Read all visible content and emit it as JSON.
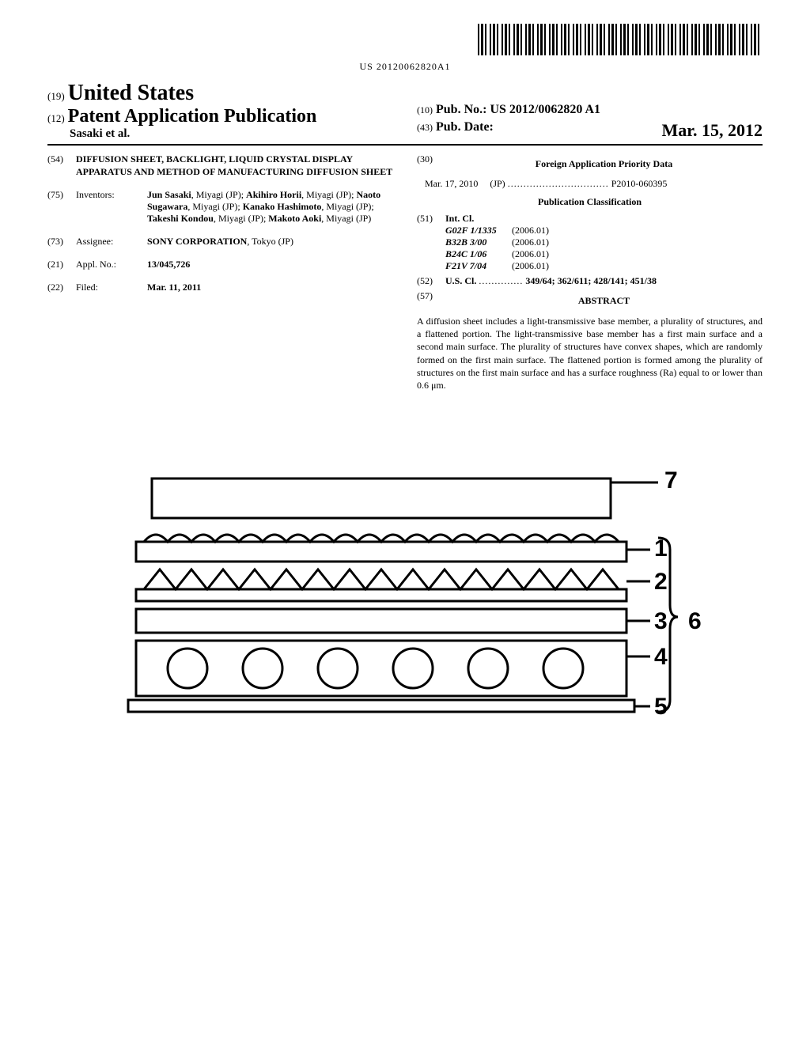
{
  "barcode": {
    "number": "US 20120062820A1"
  },
  "header": {
    "country_prefix": "(19)",
    "country": "United States",
    "doc_type_prefix": "(12)",
    "doc_type": "Patent Application Publication",
    "authors": "Sasaki et al.",
    "pub_no_prefix": "(10)",
    "pub_no_label": "Pub. No.:",
    "pub_no": "US 2012/0062820 A1",
    "pub_date_prefix": "(43)",
    "pub_date_label": "Pub. Date:",
    "pub_date": "Mar. 15, 2012"
  },
  "left": {
    "title_code": "(54)",
    "title": "DIFFUSION SHEET, BACKLIGHT, LIQUID CRYSTAL DISPLAY APPARATUS AND METHOD OF MANUFACTURING DIFFUSION SHEET",
    "inventors_code": "(75)",
    "inventors_label": "Inventors:",
    "inventors": [
      {
        "name": "Jun Sasaki",
        "loc": ", Miyagi (JP); "
      },
      {
        "name": "Akihiro Horii",
        "loc": ", Miyagi (JP); "
      },
      {
        "name": "Naoto Sugawara",
        "loc": ", Miyagi (JP); "
      },
      {
        "name": "Kanako Hashimoto",
        "loc": ", Miyagi (JP); "
      },
      {
        "name": "Takeshi Kondou",
        "loc": ", Miyagi (JP); "
      },
      {
        "name": "Makoto Aoki",
        "loc": ", Miyagi (JP)"
      }
    ],
    "assignee_code": "(73)",
    "assignee_label": "Assignee:",
    "assignee_name": "SONY CORPORATION",
    "assignee_loc": ", Tokyo (JP)",
    "appl_code": "(21)",
    "appl_label": "Appl. No.:",
    "appl_no": "13/045,726",
    "filed_code": "(22)",
    "filed_label": "Filed:",
    "filed_date": "Mar. 11, 2011"
  },
  "right": {
    "foreign_code": "(30)",
    "foreign_header": "Foreign Application Priority Data",
    "foreign_date": "Mar. 17, 2010",
    "foreign_country": "(JP)",
    "foreign_dots": "................................",
    "foreign_no": "P2010-060395",
    "pubclass_header": "Publication Classification",
    "intcl_code": "(51)",
    "intcl_label": "Int. Cl.",
    "intcl": [
      {
        "code": "G02F 1/1335",
        "year": "(2006.01)"
      },
      {
        "code": "B32B 3/00",
        "year": "(2006.01)"
      },
      {
        "code": "B24C 1/06",
        "year": "(2006.01)"
      },
      {
        "code": "F21V 7/04",
        "year": "(2006.01)"
      }
    ],
    "uscl_code": "(52)",
    "uscl_label": "U.S. Cl.",
    "uscl_dots": "..............",
    "uscl": "349/64; 362/611; 428/141; 451/38",
    "abstract_code": "(57)",
    "abstract_header": "ABSTRACT",
    "abstract": "A diffusion sheet includes a light-transmissive base member, a plurality of structures, and a flattened portion. The light-transmissive base member has a first main surface and a second main surface. The plurality of structures have convex shapes, which are randomly formed on the first main surface. The flattened portion is formed among the plurality of structures on the first main surface and has a surface roughness (Ra) equal to or lower than 0.6 μm."
  },
  "figure": {
    "labels": [
      "7",
      "1",
      "2",
      "3",
      "4",
      "5",
      "6"
    ],
    "stroke": "#000000",
    "stroke_width": 3
  }
}
